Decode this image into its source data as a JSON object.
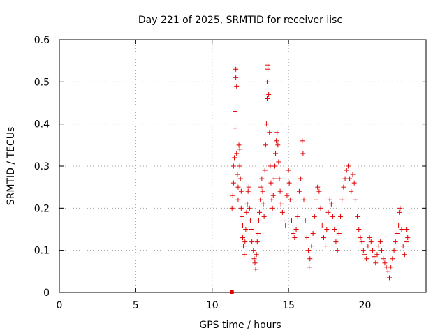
{
  "chart_data": {
    "type": "scatter",
    "title": "Day 221 of 2025, SRMTID for receiver iisc",
    "xlabel": "GPS time / hours",
    "ylabel": "SRMTID / TECUs",
    "xlim": [
      0,
      24
    ],
    "ylim": [
      0,
      0.6
    ],
    "xticks": [
      0,
      5,
      10,
      15,
      20
    ],
    "yticks": [
      0,
      0.1,
      0.2,
      0.3,
      0.4,
      0.5,
      0.6
    ],
    "ytick_labels": [
      "0",
      "0.1",
      "0.2",
      "0.3",
      "0.4",
      "0.5",
      "0.6"
    ],
    "grid": true,
    "marker": "plus",
    "color": "#e00000",
    "outlier": {
      "x": 11.3,
      "y": 0.0
    },
    "series": [
      {
        "name": "SRMTID",
        "points": [
          [
            11.3,
            0.2
          ],
          [
            11.35,
            0.23
          ],
          [
            11.4,
            0.26
          ],
          [
            11.4,
            0.3
          ],
          [
            11.45,
            0.32
          ],
          [
            11.5,
            0.39
          ],
          [
            11.5,
            0.43
          ],
          [
            11.55,
            0.51
          ],
          [
            11.55,
            0.53
          ],
          [
            11.6,
            0.49
          ],
          [
            11.6,
            0.33
          ],
          [
            11.65,
            0.28
          ],
          [
            11.7,
            0.25
          ],
          [
            11.7,
            0.22
          ],
          [
            11.75,
            0.35
          ],
          [
            11.8,
            0.34
          ],
          [
            11.8,
            0.3
          ],
          [
            11.85,
            0.27
          ],
          [
            11.9,
            0.24
          ],
          [
            11.9,
            0.2
          ],
          [
            11.95,
            0.18
          ],
          [
            12.0,
            0.16
          ],
          [
            12.0,
            0.13
          ],
          [
            12.05,
            0.11
          ],
          [
            12.1,
            0.09
          ],
          [
            12.15,
            0.12
          ],
          [
            12.2,
            0.15
          ],
          [
            12.25,
            0.19
          ],
          [
            12.3,
            0.21
          ],
          [
            12.35,
            0.24
          ],
          [
            12.4,
            0.25
          ],
          [
            12.45,
            0.2
          ],
          [
            12.5,
            0.17
          ],
          [
            12.55,
            0.15
          ],
          [
            12.6,
            0.12
          ],
          [
            12.7,
            0.1
          ],
          [
            12.75,
            0.08
          ],
          [
            12.8,
            0.07
          ],
          [
            12.85,
            0.055
          ],
          [
            12.9,
            0.09
          ],
          [
            12.95,
            0.12
          ],
          [
            13.0,
            0.14
          ],
          [
            13.05,
            0.17
          ],
          [
            13.1,
            0.19
          ],
          [
            13.15,
            0.22
          ],
          [
            13.2,
            0.25
          ],
          [
            13.25,
            0.27
          ],
          [
            13.3,
            0.24
          ],
          [
            13.35,
            0.21
          ],
          [
            13.4,
            0.18
          ],
          [
            13.45,
            0.29
          ],
          [
            13.5,
            0.35
          ],
          [
            13.55,
            0.4
          ],
          [
            13.6,
            0.46
          ],
          [
            13.6,
            0.5
          ],
          [
            13.65,
            0.53
          ],
          [
            13.65,
            0.54
          ],
          [
            13.7,
            0.47
          ],
          [
            13.75,
            0.38
          ],
          [
            13.8,
            0.3
          ],
          [
            13.85,
            0.26
          ],
          [
            13.9,
            0.22
          ],
          [
            13.95,
            0.2
          ],
          [
            14.0,
            0.23
          ],
          [
            14.05,
            0.27
          ],
          [
            14.1,
            0.3
          ],
          [
            14.15,
            0.33
          ],
          [
            14.2,
            0.36
          ],
          [
            14.25,
            0.38
          ],
          [
            14.3,
            0.35
          ],
          [
            14.35,
            0.31
          ],
          [
            14.4,
            0.27
          ],
          [
            14.45,
            0.24
          ],
          [
            14.5,
            0.21
          ],
          [
            14.6,
            0.19
          ],
          [
            14.7,
            0.17
          ],
          [
            14.8,
            0.16
          ],
          [
            14.9,
            0.23
          ],
          [
            15.0,
            0.29
          ],
          [
            15.05,
            0.26
          ],
          [
            15.1,
            0.22
          ],
          [
            15.2,
            0.17
          ],
          [
            15.3,
            0.14
          ],
          [
            15.4,
            0.13
          ],
          [
            15.5,
            0.15
          ],
          [
            15.6,
            0.18
          ],
          [
            15.7,
            0.24
          ],
          [
            15.8,
            0.27
          ],
          [
            15.9,
            0.36
          ],
          [
            15.95,
            0.33
          ],
          [
            16.0,
            0.22
          ],
          [
            16.1,
            0.17
          ],
          [
            16.2,
            0.13
          ],
          [
            16.3,
            0.1
          ],
          [
            16.35,
            0.06
          ],
          [
            16.4,
            0.08
          ],
          [
            16.5,
            0.11
          ],
          [
            16.6,
            0.14
          ],
          [
            16.7,
            0.18
          ],
          [
            16.8,
            0.22
          ],
          [
            16.9,
            0.25
          ],
          [
            17.0,
            0.24
          ],
          [
            17.1,
            0.2
          ],
          [
            17.2,
            0.16
          ],
          [
            17.3,
            0.13
          ],
          [
            17.4,
            0.11
          ],
          [
            17.5,
            0.15
          ],
          [
            17.6,
            0.19
          ],
          [
            17.7,
            0.22
          ],
          [
            17.8,
            0.21
          ],
          [
            17.9,
            0.18
          ],
          [
            18.0,
            0.15
          ],
          [
            18.1,
            0.12
          ],
          [
            18.2,
            0.1
          ],
          [
            18.3,
            0.14
          ],
          [
            18.4,
            0.18
          ],
          [
            18.5,
            0.22
          ],
          [
            18.6,
            0.25
          ],
          [
            18.7,
            0.27
          ],
          [
            18.8,
            0.29
          ],
          [
            18.9,
            0.3
          ],
          [
            19.0,
            0.27
          ],
          [
            19.1,
            0.24
          ],
          [
            19.2,
            0.28
          ],
          [
            19.3,
            0.26
          ],
          [
            19.4,
            0.22
          ],
          [
            19.5,
            0.18
          ],
          [
            19.6,
            0.15
          ],
          [
            19.7,
            0.13
          ],
          [
            19.8,
            0.12
          ],
          [
            19.9,
            0.1
          ],
          [
            20.0,
            0.09
          ],
          [
            20.1,
            0.08
          ],
          [
            20.2,
            0.11
          ],
          [
            20.3,
            0.13
          ],
          [
            20.4,
            0.12
          ],
          [
            20.5,
            0.1
          ],
          [
            20.6,
            0.085
          ],
          [
            20.7,
            0.07
          ],
          [
            20.8,
            0.09
          ],
          [
            20.9,
            0.11
          ],
          [
            21.0,
            0.12
          ],
          [
            21.1,
            0.1
          ],
          [
            21.2,
            0.08
          ],
          [
            21.3,
            0.07
          ],
          [
            21.4,
            0.06
          ],
          [
            21.5,
            0.05
          ],
          [
            21.6,
            0.035
          ],
          [
            21.7,
            0.06
          ],
          [
            21.8,
            0.08
          ],
          [
            21.9,
            0.1
          ],
          [
            22.0,
            0.12
          ],
          [
            22.1,
            0.14
          ],
          [
            22.2,
            0.16
          ],
          [
            22.25,
            0.19
          ],
          [
            22.3,
            0.2
          ],
          [
            22.4,
            0.15
          ],
          [
            22.5,
            0.11
          ],
          [
            22.6,
            0.09
          ],
          [
            22.7,
            0.12
          ],
          [
            22.75,
            0.15
          ],
          [
            22.8,
            0.13
          ]
        ]
      }
    ]
  }
}
